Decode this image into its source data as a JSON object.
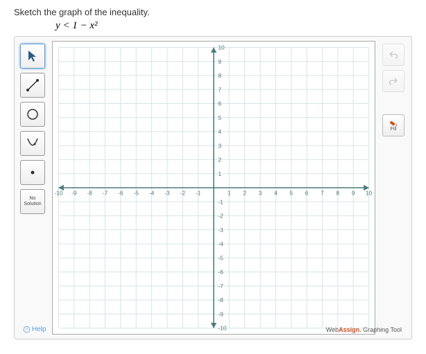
{
  "prompt": "Sketch the graph of the inequality.",
  "equation": "y < 1 − x²",
  "toolbar": {
    "pointer": "pointer",
    "line": "line",
    "circle": "circle",
    "parabola": "parabola",
    "point": "point",
    "no_solution_l1": "No",
    "no_solution_l2": "Solution"
  },
  "right": {
    "fill_label": "Fill"
  },
  "help_label": "Help",
  "brand_prefix": "Web",
  "brand_accent": "Assign.",
  "brand_suffix": " Graphing Tool",
  "grid": {
    "xmin": -10,
    "xmax": 10,
    "ymin": -10,
    "ymax": 10,
    "step": 1,
    "grid_color": "#d9e6e6",
    "axis_color": "#4a7a7a",
    "tick_font": 8,
    "tick_color": "#4a7a7a",
    "bg": "#ffffff"
  }
}
